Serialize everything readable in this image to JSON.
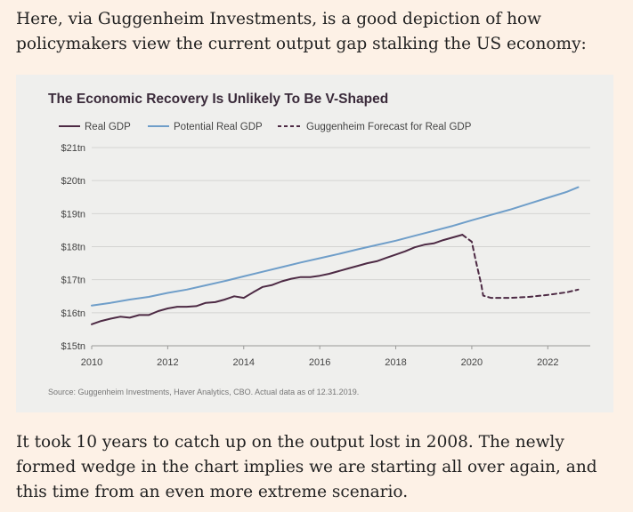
{
  "intro_text": "Here, via Guggenheim Investments, is a good depiction of how policymakers view the current output gap stalking the US economy:",
  "outro_text": "It took 10 years to catch up on the output lost in 2008. The newly formed wedge in the chart implies we are starting all over again, and this time from an even more extreme scenario.",
  "colors": {
    "real_gdp": "#4d2a44",
    "potential_gdp": "#6f9ec9",
    "forecast": "#4d2a44",
    "grid": "#d4d4d2"
  },
  "chart_data": {
    "type": "line",
    "title": "The Economic Recovery Is Unlikely To Be V-Shaped",
    "source": "Source: Guggenheim Investments, Haver Analytics, CBO. Actual data as of 12.31.2019.",
    "xlabel": "",
    "ylabel": "",
    "xlim": [
      2010,
      2023
    ],
    "ylim": [
      15,
      21
    ],
    "x_ticks": [
      2010,
      2012,
      2014,
      2016,
      2018,
      2020,
      2022
    ],
    "y_ticks": [
      {
        "value": 15,
        "label": "$15tn"
      },
      {
        "value": 16,
        "label": "$16tn"
      },
      {
        "value": 17,
        "label": "$17tn"
      },
      {
        "value": 18,
        "label": "$18tn"
      },
      {
        "value": 19,
        "label": "$19tn"
      },
      {
        "value": 20,
        "label": "$20tn"
      },
      {
        "value": 21,
        "label": "$21tn"
      }
    ],
    "grid": true,
    "legend_position": "top-left",
    "series": [
      {
        "name": "Real GDP",
        "style": "solid",
        "x": [
          2010,
          2010.25,
          2010.5,
          2010.75,
          2011,
          2011.25,
          2011.5,
          2011.75,
          2012,
          2012.25,
          2012.5,
          2012.75,
          2013,
          2013.25,
          2013.5,
          2013.75,
          2014,
          2014.25,
          2014.5,
          2014.75,
          2015,
          2015.25,
          2015.5,
          2015.75,
          2016,
          2016.25,
          2016.5,
          2016.75,
          2017,
          2017.25,
          2017.5,
          2017.75,
          2018,
          2018.25,
          2018.5,
          2018.75,
          2019,
          2019.25,
          2019.5,
          2019.75
        ],
        "values": [
          15.65,
          15.75,
          15.82,
          15.88,
          15.85,
          15.93,
          15.93,
          16.05,
          16.13,
          16.18,
          16.18,
          16.2,
          16.3,
          16.32,
          16.4,
          16.5,
          16.45,
          16.62,
          16.78,
          16.84,
          16.95,
          17.03,
          17.08,
          17.08,
          17.12,
          17.18,
          17.26,
          17.34,
          17.42,
          17.5,
          17.56,
          17.66,
          17.76,
          17.86,
          17.98,
          18.06,
          18.1,
          18.2,
          18.28,
          18.36
        ]
      },
      {
        "name": "Potential Real GDP",
        "style": "solid",
        "x": [
          2010,
          2010.5,
          2011,
          2011.5,
          2012,
          2012.5,
          2013,
          2013.5,
          2014,
          2014.5,
          2015,
          2015.5,
          2016,
          2016.5,
          2017,
          2017.5,
          2018,
          2018.5,
          2019,
          2019.5,
          2020,
          2020.5,
          2021,
          2021.5,
          2022,
          2022.5,
          2022.8
        ],
        "values": [
          16.22,
          16.3,
          16.4,
          16.48,
          16.6,
          16.7,
          16.83,
          16.96,
          17.1,
          17.24,
          17.38,
          17.52,
          17.65,
          17.78,
          17.92,
          18.05,
          18.18,
          18.33,
          18.48,
          18.63,
          18.8,
          18.96,
          19.12,
          19.3,
          19.48,
          19.66,
          19.8
        ]
      },
      {
        "name": "Guggenheim Forecast for Real GDP",
        "style": "dashed",
        "x": [
          2019.75,
          2020,
          2020.1,
          2020.25,
          2020.3,
          2020.5,
          2021,
          2021.5,
          2022,
          2022.5,
          2022.8
        ],
        "values": [
          18.36,
          18.15,
          17.6,
          16.85,
          16.52,
          16.45,
          16.45,
          16.48,
          16.54,
          16.62,
          16.7
        ]
      }
    ]
  }
}
